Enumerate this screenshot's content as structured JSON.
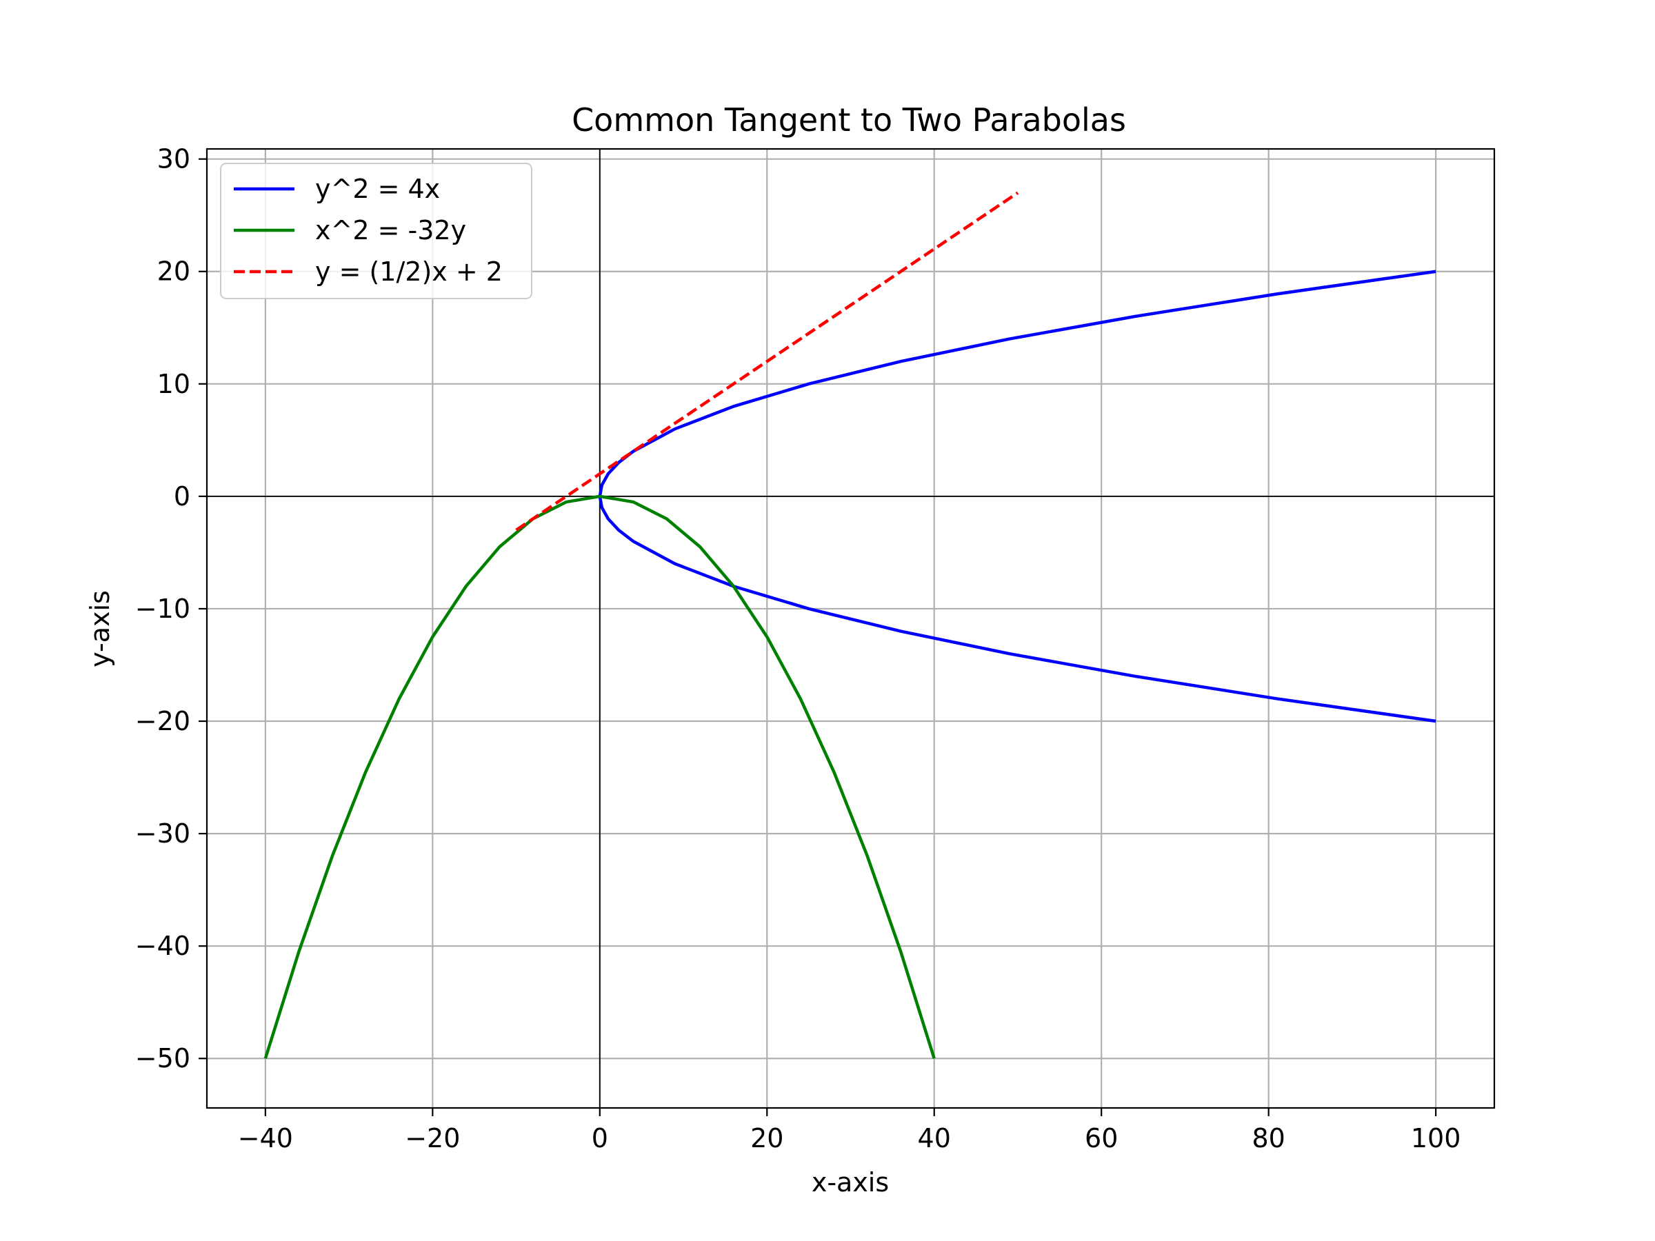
{
  "chart_data": {
    "type": "line",
    "title": "Common Tangent to Two Parabolas",
    "xlabel": "x-axis",
    "ylabel": "y-axis",
    "xlim": [
      -47,
      107
    ],
    "ylim": [
      -54.4,
      30.9
    ],
    "xticks": [
      -40,
      -20,
      0,
      20,
      40,
      60,
      80,
      100
    ],
    "yticks": [
      -50,
      -40,
      -30,
      -20,
      -10,
      0,
      10,
      20,
      30
    ],
    "xtick_labels": [
      "−40",
      "−20",
      "0",
      "20",
      "40",
      "60",
      "80",
      "100"
    ],
    "ytick_labels": [
      "−50",
      "−40",
      "−30",
      "−20",
      "−10",
      "0",
      "10",
      "20",
      "30"
    ],
    "grid": true,
    "zero_lines": true,
    "legend_position": "top-left",
    "series": [
      {
        "name": "y^2 = 4x",
        "color": "#0000ff",
        "linestyle": "solid",
        "x": [
          100,
          81,
          64,
          49,
          36,
          25,
          16,
          9,
          4,
          2.25,
          1,
          0.25,
          0,
          0.25,
          1,
          2.25,
          4,
          9,
          16,
          25,
          36,
          49,
          64,
          81,
          100
        ],
        "y": [
          -20,
          -18,
          -16,
          -14,
          -12,
          -10,
          -8,
          -6,
          -4,
          -3,
          -2,
          -1,
          0,
          1,
          2,
          3,
          4,
          6,
          8,
          10,
          12,
          14,
          16,
          18,
          20
        ]
      },
      {
        "name": "x^2 = -32y",
        "color": "#008000",
        "linestyle": "solid",
        "x": [
          -40,
          -36,
          -32,
          -28,
          -24,
          -20,
          -16,
          -12,
          -8,
          -4,
          0,
          4,
          8,
          12,
          16,
          20,
          24,
          28,
          32,
          36,
          40
        ],
        "y": [
          -50,
          -40.5,
          -32,
          -24.5,
          -18,
          -12.5,
          -8,
          -4.5,
          -2,
          -0.5,
          0,
          -0.5,
          -2,
          -4.5,
          -8,
          -12.5,
          -18,
          -24.5,
          -32,
          -40.5,
          -50
        ]
      },
      {
        "name": "y = (1/2)x + 2",
        "color": "#ff0000",
        "linestyle": "dashed",
        "x": [
          -10,
          50
        ],
        "y": [
          -3,
          27
        ]
      }
    ]
  }
}
